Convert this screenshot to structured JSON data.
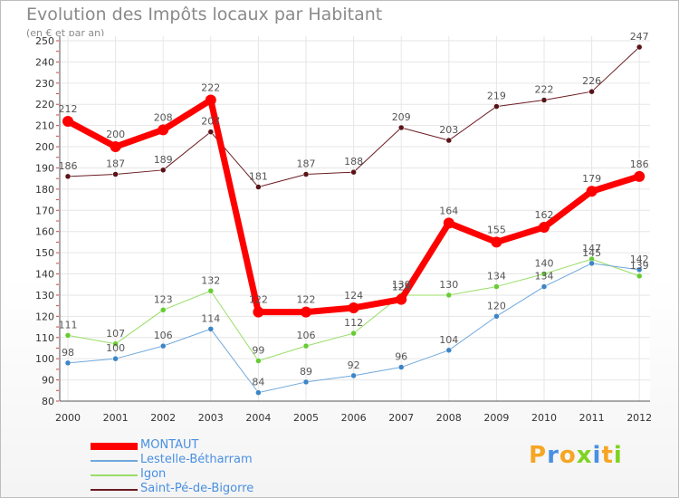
{
  "chart_data": {
    "type": "line",
    "title": "Evolution des Impôts locaux par Habitant",
    "subtitle": "(en € et par an)",
    "xlabel": "",
    "ylabel": "",
    "ylim": [
      80,
      250
    ],
    "yticks": [
      80,
      90,
      100,
      110,
      120,
      130,
      140,
      150,
      160,
      170,
      180,
      190,
      200,
      210,
      220,
      230,
      240,
      250
    ],
    "categories": [
      "2000",
      "2001",
      "2002",
      "2003",
      "2004",
      "2005",
      "2006",
      "2007",
      "2008",
      "2009",
      "2010",
      "2011",
      "2012"
    ],
    "grid": true,
    "legend_position": "bottom-left",
    "series": [
      {
        "name": "Saint-Pé-de-Bigorre",
        "color": "#6b1c22",
        "dot": "#5a1418",
        "width": 1,
        "radius": 3,
        "values": [
          186,
          187,
          189,
          207,
          181,
          187,
          188,
          209,
          203,
          219,
          222,
          226,
          247
        ]
      },
      {
        "name": "Igon",
        "color": "#99dd66",
        "dot": "#66cc33",
        "width": 1,
        "radius": 3,
        "values": [
          111,
          107,
          123,
          132,
          99,
          106,
          112,
          130,
          130,
          134,
          140,
          147,
          139
        ]
      },
      {
        "name": "Lestelle-Bétharram",
        "color": "#6fa8dc",
        "dot": "#3d85c6",
        "width": 1,
        "radius": 3,
        "values": [
          98,
          100,
          106,
          114,
          84,
          89,
          92,
          96,
          104,
          120,
          134,
          145,
          142
        ]
      },
      {
        "name": "MONTAUT",
        "color": "#ff0000",
        "dot": "#ff0000",
        "width": 7,
        "radius": 6,
        "values": [
          212,
          200,
          208,
          222,
          122,
          122,
          124,
          128,
          164,
          155,
          162,
          179,
          186
        ]
      }
    ],
    "legend_order": [
      "MONTAUT",
      "Lestelle-Bétharram",
      "Igon",
      "Saint-Pé-de-Bigorre"
    ]
  },
  "branding": {
    "logo_text": "Proxiti",
    "logo_colors": [
      "#f5a623",
      "#4a90e2",
      "#f5a623",
      "#7ed321",
      "#4a90e2",
      "#f5a623",
      "#7ed321"
    ]
  }
}
